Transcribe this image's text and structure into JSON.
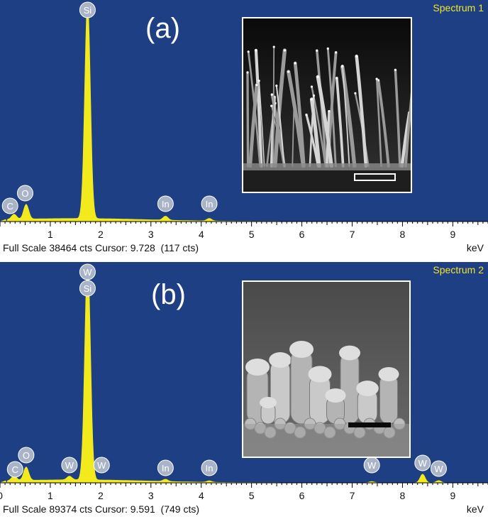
{
  "chart_data": [
    {
      "type": "line",
      "panel_label": "(a)",
      "spectrum_title": "Spectrum 1",
      "status_text": "Full Scale 38464 cts Cursor: 9.728  (117 cts)",
      "xlabel": "keV",
      "xlim": [
        0.0,
        9.7
      ],
      "ylim": [
        0,
        38464
      ],
      "xticks": [
        1,
        2,
        3,
        4,
        5,
        6,
        7,
        8,
        9
      ],
      "peaks": [
        {
          "element": "C",
          "x": 0.28,
          "y": 900
        },
        {
          "element": "O",
          "x": 0.52,
          "y": 2600
        },
        {
          "element": "Si",
          "x": 1.74,
          "y": 38464
        },
        {
          "element": "In",
          "x": 3.29,
          "y": 700
        },
        {
          "element": "In",
          "x": 4.16,
          "y": 450
        }
      ],
      "element_labels": [
        {
          "text": "Si",
          "x": 1.74
        },
        {
          "text": "C",
          "x": 0.2
        },
        {
          "text": "O",
          "x": 0.5
        },
        {
          "text": "In",
          "x": 3.29
        },
        {
          "text": "In",
          "x": 4.16
        }
      ]
    },
    {
      "type": "line",
      "panel_label": "(b)",
      "spectrum_title": "Spectrum 2",
      "status_text": "Full Scale 89374 cts Cursor: 9.591  (749 cts)",
      "xlabel": "keV",
      "xlim": [
        0.0,
        9.7
      ],
      "ylim": [
        0,
        89374
      ],
      "xticks": [
        0,
        1,
        2,
        3,
        4,
        5,
        6,
        7,
        8,
        9
      ],
      "peaks": [
        {
          "element": "C",
          "x": 0.28,
          "y": 2000
        },
        {
          "element": "O",
          "x": 0.52,
          "y": 5500
        },
        {
          "element": "W",
          "x": 1.38,
          "y": 1500
        },
        {
          "element": "Si",
          "x": 1.74,
          "y": 89374
        },
        {
          "element": "W",
          "x": 1.78,
          "y": 3000
        },
        {
          "element": "In",
          "x": 3.29,
          "y": 900
        },
        {
          "element": "In",
          "x": 4.16,
          "y": 600
        },
        {
          "element": "W",
          "x": 7.39,
          "y": 500
        },
        {
          "element": "W",
          "x": 8.4,
          "y": 3500
        },
        {
          "element": "W",
          "x": 8.72,
          "y": 900
        }
      ],
      "element_labels": [
        {
          "text": "W",
          "x": 1.74
        },
        {
          "text": "Si",
          "x": 1.74
        },
        {
          "text": "C",
          "x": 0.3
        },
        {
          "text": "O",
          "x": 0.52
        },
        {
          "text": "W",
          "x": 1.38
        },
        {
          "text": "W",
          "x": 2.02
        },
        {
          "text": "In",
          "x": 3.29
        },
        {
          "text": "In",
          "x": 4.16
        },
        {
          "text": "W",
          "x": 7.39
        },
        {
          "text": "W",
          "x": 8.4
        },
        {
          "text": "W",
          "x": 8.72
        }
      ]
    }
  ]
}
